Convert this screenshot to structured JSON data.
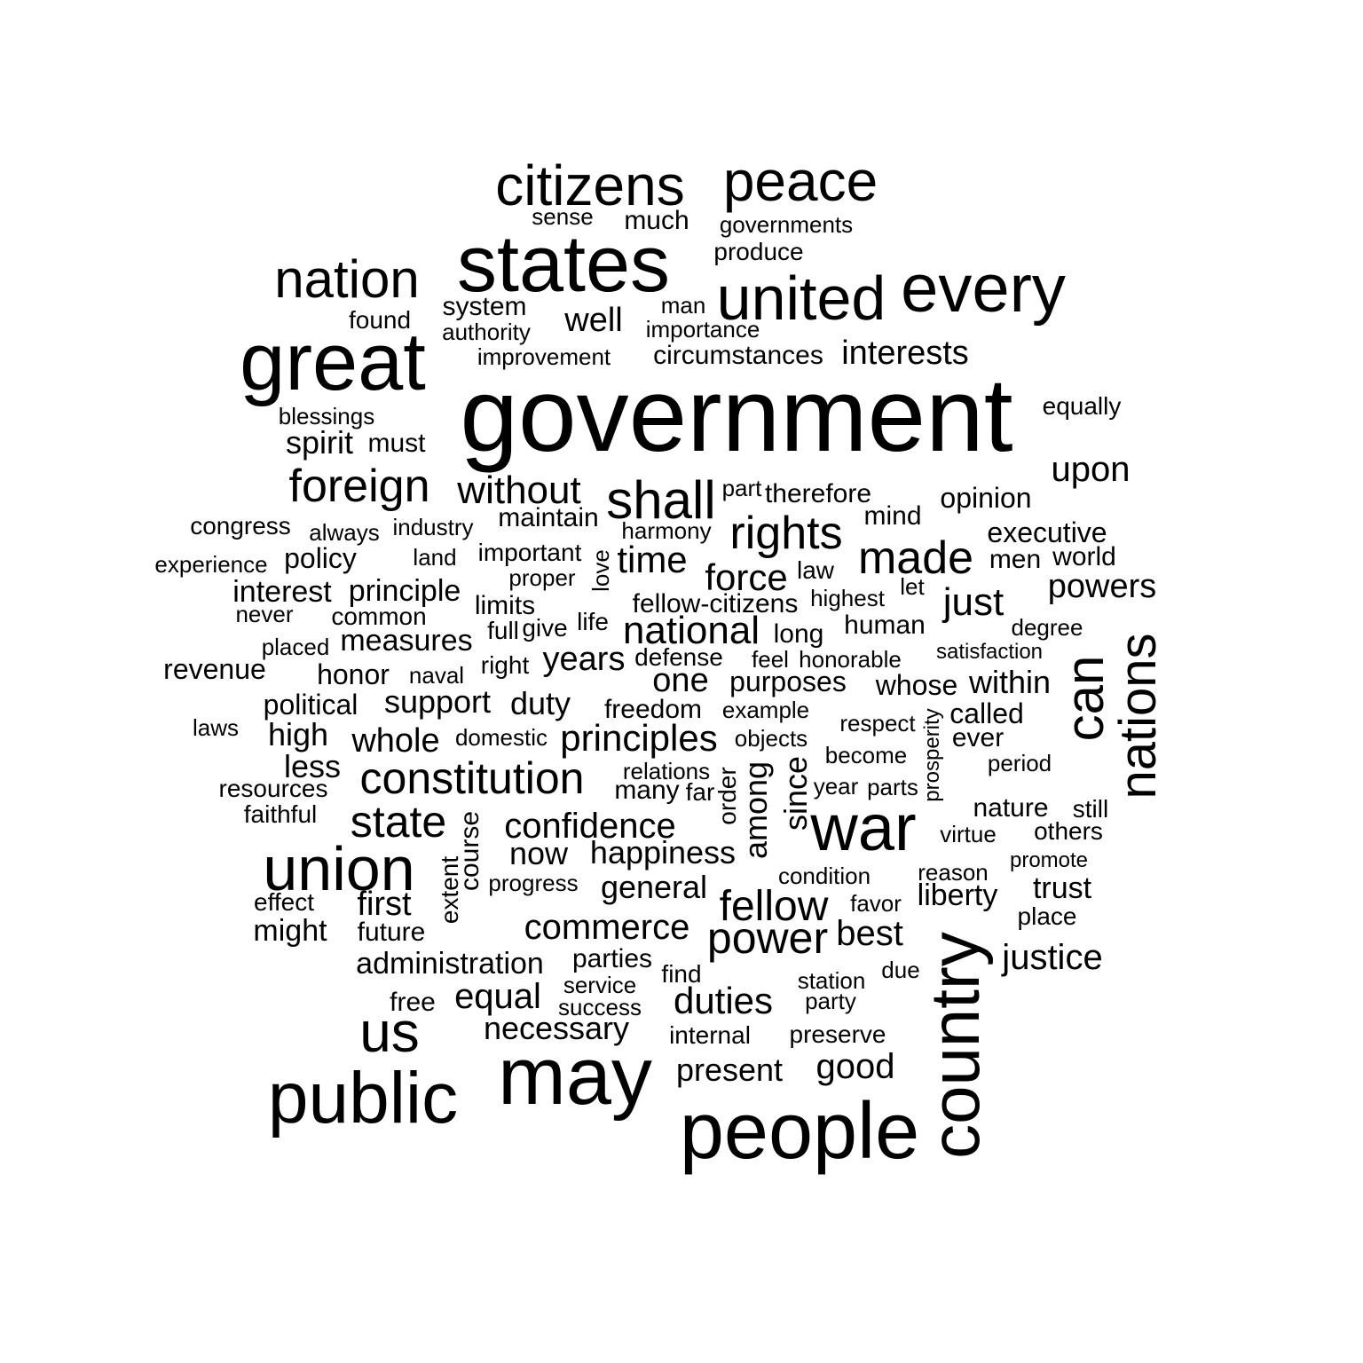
{
  "words": [
    {
      "id": "government",
      "text": "government"
    },
    {
      "id": "great",
      "text": "great"
    },
    {
      "id": "states",
      "text": "states"
    },
    {
      "id": "may",
      "text": "may"
    },
    {
      "id": "people",
      "text": "people"
    },
    {
      "id": "public",
      "text": "public"
    },
    {
      "id": "country",
      "text": "country"
    },
    {
      "id": "every",
      "text": "every"
    },
    {
      "id": "united",
      "text": "united"
    },
    {
      "id": "citizens",
      "text": "citizens"
    },
    {
      "id": "peace",
      "text": "peace"
    },
    {
      "id": "nation",
      "text": "nation"
    },
    {
      "id": "union",
      "text": "union"
    },
    {
      "id": "war",
      "text": "war"
    },
    {
      "id": "nations",
      "text": "nations"
    },
    {
      "id": "can",
      "text": "can"
    },
    {
      "id": "us",
      "text": "us"
    },
    {
      "id": "shall",
      "text": "shall"
    },
    {
      "id": "constitution",
      "text": "constitution"
    },
    {
      "id": "foreign",
      "text": "foreign"
    },
    {
      "id": "made",
      "text": "made"
    },
    {
      "id": "rights",
      "text": "rights"
    },
    {
      "id": "state",
      "text": "state"
    },
    {
      "id": "power",
      "text": "power"
    },
    {
      "id": "fellow",
      "text": "fellow"
    },
    {
      "id": "without",
      "text": "without"
    },
    {
      "id": "national",
      "text": "national"
    },
    {
      "id": "principles",
      "text": "principles"
    },
    {
      "id": "confidence",
      "text": "confidence"
    },
    {
      "id": "commerce",
      "text": "commerce"
    },
    {
      "id": "duties",
      "text": "duties"
    },
    {
      "id": "interests",
      "text": "interests"
    },
    {
      "id": "upon",
      "text": "upon"
    },
    {
      "id": "powers",
      "text": "powers"
    },
    {
      "id": "time",
      "text": "time"
    },
    {
      "id": "force",
      "text": "force"
    },
    {
      "id": "just",
      "text": "just"
    },
    {
      "id": "justice",
      "text": "justice"
    },
    {
      "id": "best",
      "text": "best"
    },
    {
      "id": "good",
      "text": "good"
    },
    {
      "id": "present",
      "text": "present"
    },
    {
      "id": "equal",
      "text": "equal"
    },
    {
      "id": "necessary",
      "text": "necessary"
    },
    {
      "id": "happiness",
      "text": "happiness"
    },
    {
      "id": "general",
      "text": "general"
    },
    {
      "id": "whole",
      "text": "whole"
    },
    {
      "id": "administration",
      "text": "administration"
    },
    {
      "id": "well",
      "text": "well"
    },
    {
      "id": "one",
      "text": "one"
    },
    {
      "id": "years",
      "text": "years"
    },
    {
      "id": "among",
      "text": "among"
    },
    {
      "id": "since",
      "text": "since"
    },
    {
      "id": "support",
      "text": "support"
    },
    {
      "id": "duty",
      "text": "duty"
    },
    {
      "id": "now",
      "text": "now"
    },
    {
      "id": "first",
      "text": "first"
    },
    {
      "id": "within",
      "text": "within"
    },
    {
      "id": "liberty",
      "text": "liberty"
    },
    {
      "id": "opinion",
      "text": "opinion"
    },
    {
      "id": "executive",
      "text": "executive"
    },
    {
      "id": "spirit",
      "text": "spirit"
    },
    {
      "id": "interest",
      "text": "interest"
    },
    {
      "id": "principle",
      "text": "principle"
    },
    {
      "id": "measures",
      "text": "measures"
    },
    {
      "id": "less",
      "text": "less"
    },
    {
      "id": "high",
      "text": "high"
    },
    {
      "id": "might",
      "text": "might"
    },
    {
      "id": "trust",
      "text": "trust"
    },
    {
      "id": "called",
      "text": "called"
    },
    {
      "id": "whose",
      "text": "whose"
    },
    {
      "id": "purposes",
      "text": "purposes"
    },
    {
      "id": "honor",
      "text": "honor"
    },
    {
      "id": "revenue",
      "text": "revenue"
    },
    {
      "id": "political",
      "text": "political"
    },
    {
      "id": "policy",
      "text": "policy"
    },
    {
      "id": "maintain",
      "text": "maintain"
    },
    {
      "id": "much",
      "text": "much"
    },
    {
      "id": "system",
      "text": "system"
    },
    {
      "id": "produce",
      "text": "produce"
    },
    {
      "id": "circumstances",
      "text": "circumstances"
    },
    {
      "id": "fellow-citizens",
      "text": "fellow-citizens"
    },
    {
      "id": "parties",
      "text": "parties"
    },
    {
      "id": "future",
      "text": "future"
    },
    {
      "id": "nature",
      "text": "nature"
    },
    {
      "id": "mind",
      "text": "mind"
    },
    {
      "id": "men",
      "text": "men"
    },
    {
      "id": "world",
      "text": "world"
    },
    {
      "id": "limits",
      "text": "limits"
    },
    {
      "id": "human",
      "text": "human"
    },
    {
      "id": "long",
      "text": "long"
    },
    {
      "id": "freedom",
      "text": "freedom"
    },
    {
      "id": "many",
      "text": "many"
    },
    {
      "id": "course",
      "text": "course"
    },
    {
      "id": "extent",
      "text": "extent"
    },
    {
      "id": "common",
      "text": "common"
    },
    {
      "id": "defense",
      "text": "defense"
    },
    {
      "id": "therefore",
      "text": "therefore"
    },
    {
      "id": "ever",
      "text": "ever"
    },
    {
      "id": "others",
      "text": "others"
    },
    {
      "id": "must",
      "text": "must"
    },
    {
      "id": "congress",
      "text": "congress"
    },
    {
      "id": "importance",
      "text": "importance"
    },
    {
      "id": "improvement",
      "text": "improvement"
    },
    {
      "id": "authority",
      "text": "authority"
    },
    {
      "id": "found",
      "text": "found"
    },
    {
      "id": "blessings",
      "text": "blessings"
    },
    {
      "id": "equally",
      "text": "equally"
    },
    {
      "id": "governments",
      "text": "governments"
    },
    {
      "id": "sense",
      "text": "sense"
    },
    {
      "id": "man",
      "text": "man"
    },
    {
      "id": "part",
      "text": "part"
    },
    {
      "id": "always",
      "text": "always"
    },
    {
      "id": "industry",
      "text": "industry"
    },
    {
      "id": "harmony",
      "text": "harmony"
    },
    {
      "id": "experience",
      "text": "experience"
    },
    {
      "id": "land",
      "text": "land"
    },
    {
      "id": "important",
      "text": "important"
    },
    {
      "id": "love",
      "text": "love"
    },
    {
      "id": "law",
      "text": "law"
    },
    {
      "id": "proper",
      "text": "proper"
    },
    {
      "id": "let",
      "text": "let"
    },
    {
      "id": "highest",
      "text": "highest"
    },
    {
      "id": "never",
      "text": "never"
    },
    {
      "id": "degree",
      "text": "degree"
    },
    {
      "id": "full",
      "text": "full"
    },
    {
      "id": "give",
      "text": "give"
    },
    {
      "id": "life",
      "text": "life"
    },
    {
      "id": "placed",
      "text": "placed"
    },
    {
      "id": "satisfaction",
      "text": "satisfaction"
    },
    {
      "id": "right",
      "text": "right"
    },
    {
      "id": "naval",
      "text": "naval"
    },
    {
      "id": "feel",
      "text": "feel"
    },
    {
      "id": "honorable",
      "text": "honorable"
    },
    {
      "id": "example",
      "text": "example"
    },
    {
      "id": "respect",
      "text": "respect"
    },
    {
      "id": "laws",
      "text": "laws"
    },
    {
      "id": "domestic",
      "text": "domestic"
    },
    {
      "id": "objects",
      "text": "objects"
    },
    {
      "id": "prosperity",
      "text": "prosperity"
    },
    {
      "id": "become",
      "text": "become"
    },
    {
      "id": "period",
      "text": "period"
    },
    {
      "id": "relations",
      "text": "relations"
    },
    {
      "id": "order",
      "text": "order"
    },
    {
      "id": "far",
      "text": "far"
    },
    {
      "id": "year",
      "text": "year"
    },
    {
      "id": "parts",
      "text": "parts"
    },
    {
      "id": "resources",
      "text": "resources"
    },
    {
      "id": "faithful",
      "text": "faithful"
    },
    {
      "id": "still",
      "text": "still"
    },
    {
      "id": "virtue",
      "text": "virtue"
    },
    {
      "id": "progress",
      "text": "progress"
    },
    {
      "id": "condition",
      "text": "condition"
    },
    {
      "id": "reason",
      "text": "reason"
    },
    {
      "id": "promote",
      "text": "promote"
    },
    {
      "id": "effect",
      "text": "effect"
    },
    {
      "id": "favor",
      "text": "favor"
    },
    {
      "id": "place",
      "text": "place"
    },
    {
      "id": "find",
      "text": "find"
    },
    {
      "id": "due",
      "text": "due"
    },
    {
      "id": "station",
      "text": "station"
    },
    {
      "id": "service",
      "text": "service"
    },
    {
      "id": "free",
      "text": "free"
    },
    {
      "id": "success",
      "text": "success"
    },
    {
      "id": "party",
      "text": "party"
    },
    {
      "id": "internal",
      "text": "internal"
    },
    {
      "id": "preserve",
      "text": "preserve"
    }
  ]
}
